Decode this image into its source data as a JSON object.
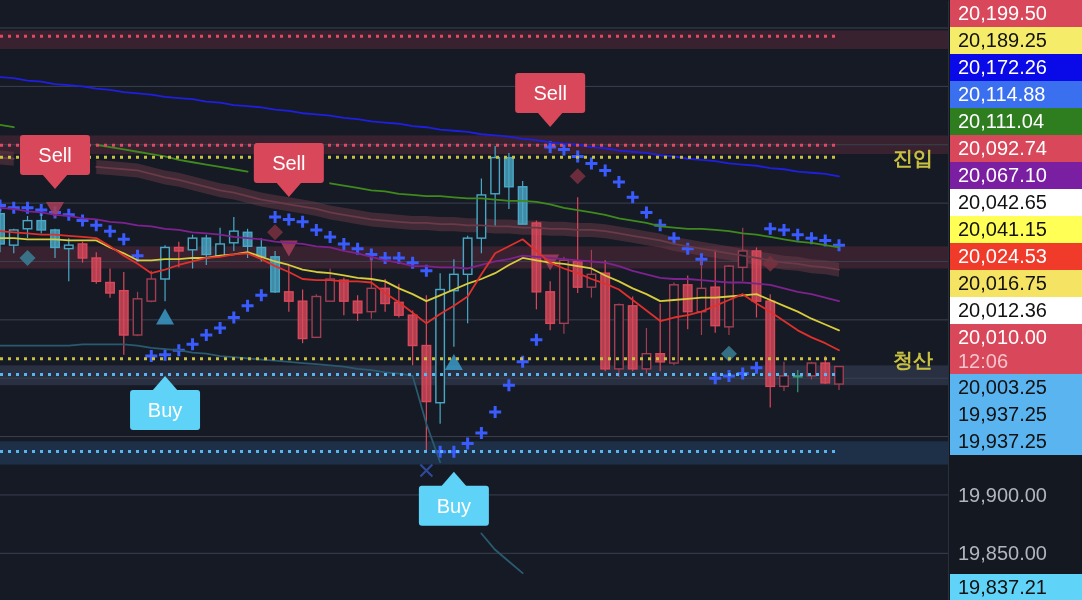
{
  "chart_data": {
    "type": "candlestick",
    "categories": [
      null,
      null,
      null,
      null,
      null,
      null,
      null,
      null,
      null,
      null,
      null,
      null,
      null,
      null,
      null,
      null,
      null,
      null,
      null,
      null,
      null,
      null,
      null,
      null,
      null,
      null,
      null,
      null,
      null,
      null,
      null,
      null,
      null,
      null,
      null,
      null,
      null,
      null,
      null,
      null,
      null,
      null,
      null,
      null,
      null,
      null,
      null,
      null,
      null,
      null,
      null,
      null,
      null,
      null,
      null,
      null,
      null,
      null,
      null,
      null,
      null,
      null
    ],
    "ohlc": [
      [
        20141,
        20146,
        20108,
        20115
      ],
      [
        20114,
        20128,
        20107,
        20127
      ],
      [
        20128,
        20139,
        20120,
        20135
      ],
      [
        20135,
        20141,
        20124,
        20127
      ],
      [
        20127,
        20128,
        20103,
        20112
      ],
      [
        20111,
        20120,
        20083,
        20114
      ],
      [
        20115,
        20117,
        20099,
        20103
      ],
      [
        20103,
        20108,
        20081,
        20083
      ],
      [
        20082,
        20094,
        20069,
        20073
      ],
      [
        20075,
        20091,
        20020,
        20037
      ],
      [
        20037,
        20074,
        20036,
        20068
      ],
      [
        20066,
        20092,
        20065,
        20085
      ],
      [
        20085,
        20114,
        20066,
        20112
      ],
      [
        20112,
        20117,
        20095,
        20109
      ],
      [
        20110,
        20123,
        20094,
        20120
      ],
      [
        20120,
        20123,
        20097,
        20106
      ],
      [
        20105,
        20129,
        20105,
        20115
      ],
      [
        20116,
        20138,
        20109,
        20126
      ],
      [
        20125,
        20128,
        20103,
        20113
      ],
      [
        20112,
        20120,
        20100,
        20104
      ],
      [
        20104,
        20109,
        20073,
        20074
      ],
      [
        20074,
        20097,
        20057,
        20066
      ],
      [
        20066,
        20076,
        20030,
        20034
      ],
      [
        20035,
        20072,
        20035,
        20070
      ],
      [
        20066,
        20094,
        20066,
        20085
      ],
      [
        20084,
        20086,
        20054,
        20066
      ],
      [
        20066,
        20071,
        20049,
        20056
      ],
      [
        20057,
        20104,
        20051,
        20077
      ],
      [
        20077,
        20085,
        20057,
        20064
      ],
      [
        20065,
        20081,
        20052,
        20054
      ],
      [
        20054,
        20058,
        20011,
        20028
      ],
      [
        20028,
        20071,
        19937,
        19980
      ],
      [
        19979,
        20090,
        19961,
        20076
      ],
      [
        20075,
        20102,
        20027,
        20089
      ],
      [
        20089,
        20122,
        20047,
        20120
      ],
      [
        20120,
        20171,
        20107,
        20157
      ],
      [
        20158,
        20199,
        20130,
        20189
      ],
      [
        20189,
        20193,
        20145,
        20164
      ],
      [
        20164,
        20169,
        20132,
        20132
      ],
      [
        20133,
        20135,
        20059,
        20074
      ],
      [
        20074,
        20083,
        20041,
        20047
      ],
      [
        20047,
        20104,
        20038,
        20101
      ],
      [
        20100,
        20155,
        20073,
        20078
      ],
      [
        20078,
        20110,
        20069,
        20089
      ],
      [
        20090,
        20101,
        20006,
        20008
      ],
      [
        20008,
        20064,
        20001,
        20063
      ],
      [
        20062,
        20070,
        20006,
        20008
      ],
      [
        20008,
        20043,
        20004,
        20021
      ],
      [
        20021,
        20064,
        20006,
        20014
      ],
      [
        20013,
        20082,
        20011,
        20080
      ],
      [
        20080,
        20088,
        20042,
        20057
      ],
      [
        20057,
        20102,
        20037,
        20077
      ],
      [
        20078,
        20110,
        20039,
        20045
      ],
      [
        20044,
        20097,
        20037,
        20096
      ],
      [
        20095,
        20129,
        20083,
        20109
      ],
      [
        20109,
        20112,
        20052,
        20066
      ],
      [
        20066,
        20072,
        19975,
        19993
      ],
      [
        19993,
        20014,
        19989,
        20002
      ],
      [
        20002,
        20007,
        19988,
        20002
      ],
      [
        20002,
        20014,
        19999,
        20013
      ],
      [
        20013,
        20019,
        19995,
        19996
      ],
      [
        19995,
        20010,
        19990,
        20010
      ]
    ],
    "colors": [
      "#4aa8c6",
      "#4aa8c6",
      "#4aa8c6",
      "#4aa8c6",
      "#4aa8c6",
      "#4aa8c6",
      "#d9485a",
      "#d9485a",
      "#d9485a",
      "#d9485a",
      "#a23e52",
      "#a23e52",
      "#4aa8c6",
      "#d9485a",
      "#4aa8c6",
      "#4aa8c6",
      "#4aa8c6",
      "#4aa8c6",
      "#4aa8c6",
      "#4aa8c6",
      "#4aa8c6",
      "#d9485a",
      "#d9485a",
      "#a23e52",
      "#a23e52",
      "#d9485a",
      "#d9485a",
      "#a23e52",
      "#d9485a",
      "#d9485a",
      "#d9485a",
      "#d9485a",
      "#4aa8c6",
      "#4aa8c6",
      "#4aa8c6",
      "#4aa8c6",
      "#4aa8c6",
      "#4aa8c6",
      "#4aa8c6",
      "#d9485a",
      "#d9485a",
      "#a23e52",
      "#d9485a",
      "#a23e52",
      "#d9485a",
      "#a23e52",
      "#d9485a",
      "#a23e52",
      "#d9485a",
      "#a23e52",
      "#d9485a",
      "#a23e52",
      "#d9485a",
      "#a23e52",
      "#a23e52",
      "#d9485a",
      "#d9485a",
      "#a23e52",
      "#3b9a7a",
      "#a23e52",
      "#d9485a",
      "#a23e52"
    ],
    "series": [
      {
        "type": "line",
        "color": "#1f1fe0",
        "values": [
          20258,
          20257,
          20255,
          20254,
          20252,
          20251,
          20250,
          20248,
          20247,
          20245,
          20244,
          20243,
          20241,
          20240,
          20239,
          20237,
          20236,
          20234,
          20233,
          20232,
          20230,
          20229,
          20227,
          20226,
          20225,
          20223,
          20222,
          20220,
          20219,
          20218,
          20216,
          20215,
          20213,
          20212,
          20211,
          20209,
          20208,
          20207,
          20205,
          20204,
          20202,
          20201,
          20200,
          20198,
          20197,
          20195,
          20194,
          20193,
          20191,
          20190,
          20188,
          20187,
          20186,
          20184,
          20183,
          20182,
          20180,
          20179,
          20177,
          20176,
          20175,
          20173
        ]
      },
      {
        "type": "line",
        "color": "#3f8a1c",
        "values": [
          20217,
          20215,
          null,
          null,
          null,
          null,
          null,
          20200,
          20198,
          20196,
          20194,
          20192,
          20190,
          20187,
          20185,
          20183,
          20181,
          20179,
          20177,
          null,
          null,
          null,
          null,
          null,
          20167,
          20165,
          20163,
          20161,
          20160,
          20158,
          20157,
          20156,
          20156,
          20155,
          20154,
          20154,
          20153,
          20152,
          20152,
          20151,
          20149,
          20146,
          20144,
          20142,
          20140,
          20137,
          20135,
          20133,
          20130,
          20129,
          20128,
          20128,
          20127,
          20126,
          20124,
          20123,
          20121,
          20119,
          20117,
          20116,
          20114,
          20112
        ]
      },
      {
        "type": "line",
        "color": "#6a3a48",
        "values": [
          20189,
          20188,
          null,
          null,
          null,
          null,
          null,
          20181,
          20180,
          20179,
          20178,
          20175,
          20172,
          20170,
          20167,
          20164,
          20161,
          20159,
          20156,
          20153,
          20151,
          20149,
          20147,
          20145,
          20142,
          20140,
          20138,
          20136,
          20135,
          20134,
          20133,
          20133,
          20132,
          20132,
          20131,
          20131,
          20130,
          20130,
          20129,
          20129,
          20128,
          20128,
          20127,
          20127,
          20126,
          20124,
          20122,
          20120,
          20118,
          20115,
          20113,
          20111,
          20109,
          20107,
          20105,
          20103,
          20101,
          20099,
          20098,
          20096,
          20095,
          20093
        ],
        "lower": [
          20183,
          20182,
          null,
          null,
          null,
          null,
          null,
          20175,
          20174,
          20173,
          20172,
          20169,
          20166,
          20164,
          20161,
          20158,
          20155,
          20153,
          20150,
          20147,
          20145,
          20143,
          20141,
          20139,
          20136,
          20134,
          20132,
          20130,
          20129,
          20128,
          20127,
          20127,
          20126,
          20126,
          20125,
          20125,
          20124,
          20124,
          20123,
          20123,
          20122,
          20122,
          20121,
          20121,
          20120,
          20118,
          20116,
          20114,
          20112,
          20109,
          20107,
          20105,
          20103,
          20101,
          20099,
          20097,
          20095,
          20093,
          20092,
          20090,
          20089,
          20087
        ],
        "upper": [
          20195,
          20194,
          null,
          null,
          null,
          null,
          null,
          20187,
          20186,
          20185,
          20184,
          20181,
          20178,
          20176,
          20173,
          20170,
          20167,
          20165,
          20162,
          20159,
          20157,
          20155,
          20153,
          20151,
          20148,
          20146,
          20144,
          20142,
          20141,
          20140,
          20139,
          20139,
          20138,
          20138,
          20137,
          20137,
          20136,
          20136,
          20135,
          20135,
          20134,
          20134,
          20133,
          20133,
          20132,
          20130,
          20128,
          20126,
          20124,
          20121,
          20119,
          20117,
          20115,
          20113,
          20111,
          20109,
          20107,
          20105,
          20104,
          20102,
          20101,
          20099
        ]
      },
      {
        "type": "line",
        "color": "#7e2290",
        "values": [
          20146,
          20145,
          20143,
          20142,
          20140,
          20139,
          20137,
          20136,
          20134,
          20133,
          20131,
          20130,
          20128,
          20127,
          20125,
          20124,
          20123,
          20121,
          20120,
          20119,
          20117,
          20116,
          20115,
          20113,
          20112,
          20109,
          20107,
          20104,
          20101,
          20099,
          20096,
          20096,
          20095,
          20095,
          20094,
          20097,
          20100,
          20102,
          20105,
          20104,
          20103,
          20102,
          20101,
          20100,
          20099,
          20096,
          20092,
          20089,
          20086,
          20085,
          20085,
          20084,
          20083,
          20082,
          20082,
          20081,
          20080,
          20077,
          20074,
          20072,
          20069,
          20066
        ]
      },
      {
        "type": "line",
        "color": "#d6cc3c",
        "values": [
          20120,
          20120,
          20119,
          20119,
          20119,
          20118,
          20118,
          20118,
          20112,
          20107,
          20101,
          20101,
          20102,
          20102,
          20103,
          20103,
          20105,
          20106,
          20108,
          20104,
          20100,
          20097,
          20093,
          20091,
          20090,
          20088,
          20086,
          20085,
          20083,
          20077,
          20072,
          20066,
          20071,
          20076,
          20081,
          20085,
          20090,
          20097,
          20103,
          20101,
          20099,
          20098,
          20096,
          20094,
          20088,
          20083,
          20077,
          20072,
          20066,
          20067,
          20068,
          20069,
          20069,
          20070,
          20071,
          20072,
          20067,
          20062,
          20057,
          20051,
          20046,
          20041
        ]
      },
      {
        "type": "line",
        "color": "#e0302c",
        "values": [
          20126,
          20125,
          20124,
          20123,
          20123,
          20122,
          20121,
          20120,
          20113,
          20105,
          20098,
          20090,
          20093,
          20097,
          20100,
          20103,
          20104,
          20106,
          20107,
          20102,
          20096,
          20091,
          20085,
          20084,
          20084,
          20083,
          20083,
          20082,
          20073,
          20065,
          20056,
          20047,
          20055,
          20062,
          20070,
          20089,
          20107,
          20113,
          20119,
          20109,
          20099,
          20094,
          20090,
          20085,
          20081,
          20076,
          20067,
          20058,
          20049,
          20052,
          20054,
          20057,
          20062,
          20067,
          20072,
          20064,
          20057,
          20049,
          20041,
          20035,
          20030,
          20024
        ]
      },
      {
        "type": "line",
        "color": "#2a5a70",
        "values": [
          20028,
          20028,
          20028,
          20028,
          20028,
          20028,
          20029,
          20029,
          20029,
          20029,
          20028,
          20026,
          20025,
          20024,
          20022,
          20021,
          20019,
          20018,
          20017,
          20016,
          20015,
          20014,
          20013,
          20012,
          20011,
          20010,
          20008,
          20007,
          20005,
          20004,
          20002,
          19961,
          19928,
          null,
          null,
          19867,
          19853,
          19843,
          19833,
          null,
          null,
          null,
          null,
          null,
          null,
          null,
          null,
          null,
          null,
          null,
          null,
          null,
          null,
          null,
          null,
          null,
          null,
          null,
          null,
          null,
          null,
          null
        ]
      },
      {
        "type": "scatter",
        "marker": "cross",
        "color": "#3a5cff",
        "values": [
          20148,
          20146,
          20146,
          20144,
          20142,
          20140,
          20135,
          20131,
          20126,
          20119,
          20105,
          20019,
          20020,
          20024,
          20029,
          20037,
          20043,
          20052,
          20062,
          20071,
          20138,
          20136,
          20134,
          20127,
          20121,
          20115,
          20111,
          20106,
          20103,
          20103,
          20099,
          20092,
          19937,
          19937,
          19944,
          19953,
          19971,
          19994,
          20014,
          20033,
          20198,
          20196,
          20190,
          20184,
          20178,
          20168,
          20155,
          20142,
          20131,
          20120,
          20111,
          20102,
          20000,
          20002,
          20004,
          20009,
          20128,
          20127,
          20123,
          20120,
          20118,
          20114
        ]
      },
      {
        "type": "scatter",
        "marker": "diamond",
        "color": "#7a3040",
        "values": [
          null,
          null,
          null,
          null,
          null,
          null,
          null,
          null,
          null,
          null,
          null,
          null,
          null,
          null,
          null,
          null,
          null,
          null,
          null,
          null,
          20125,
          null,
          null,
          null,
          null,
          null,
          null,
          null,
          null,
          null,
          null,
          null,
          null,
          null,
          null,
          null,
          null,
          null,
          null,
          null,
          null,
          null,
          20173,
          null,
          null,
          null,
          null,
          null,
          null,
          null,
          null,
          null,
          null,
          null,
          null,
          null,
          20098,
          null,
          null,
          null,
          null,
          null
        ]
      },
      {
        "type": "scatter",
        "marker": "diamond",
        "color": "#3a7f95",
        "values": [
          null,
          null,
          20103,
          null,
          null,
          null,
          null,
          null,
          null,
          null,
          null,
          null,
          null,
          null,
          null,
          null,
          null,
          null,
          null,
          null,
          null,
          null,
          null,
          null,
          null,
          null,
          null,
          null,
          null,
          null,
          null,
          null,
          null,
          null,
          null,
          null,
          null,
          null,
          null,
          null,
          null,
          null,
          null,
          null,
          null,
          null,
          null,
          null,
          null,
          null,
          null,
          null,
          null,
          20021,
          null,
          null,
          null,
          null,
          null,
          null,
          null,
          null
        ]
      },
      {
        "type": "scatter",
        "marker": "triangle-down",
        "color": "#a8405a",
        "values": [
          null,
          null,
          null,
          null,
          20145,
          null,
          null,
          null,
          null,
          null,
          null,
          null,
          null,
          null,
          null,
          null,
          null,
          null,
          null,
          null,
          null,
          20112,
          null,
          null,
          null,
          null,
          null,
          null,
          null,
          null,
          null,
          null,
          null,
          null,
          null,
          null,
          null,
          null,
          null,
          null,
          20100,
          null,
          null,
          null,
          null,
          null,
          null,
          null,
          null,
          null,
          null,
          null,
          null,
          null,
          null,
          null,
          null,
          null,
          null,
          null,
          null,
          null
        ]
      },
      {
        "type": "scatter",
        "marker": "triangle",
        "color": "#3a9ac8",
        "values": [
          null,
          null,
          null,
          null,
          null,
          null,
          null,
          null,
          null,
          null,
          null,
          null,
          20052,
          null,
          null,
          null,
          null,
          null,
          null,
          null,
          null,
          null,
          null,
          null,
          null,
          null,
          null,
          null,
          null,
          null,
          null,
          null,
          null,
          20013,
          null,
          null,
          null,
          null,
          null,
          null,
          null,
          null,
          null,
          null,
          null,
          null,
          null,
          null,
          null,
          null,
          null,
          null,
          null,
          null,
          null,
          null,
          null,
          null,
          null,
          null,
          null,
          null
        ]
      },
      {
        "type": "scatter",
        "marker": "x",
        "color": "#2f4a9a",
        "values": [
          null,
          null,
          null,
          null,
          null,
          null,
          null,
          null,
          null,
          null,
          null,
          null,
          null,
          null,
          null,
          null,
          null,
          null,
          null,
          null,
          null,
          null,
          null,
          null,
          null,
          null,
          null,
          null,
          null,
          null,
          null,
          19921,
          null,
          null,
          null,
          null,
          null,
          null,
          null,
          null,
          null,
          null,
          null,
          null,
          null,
          null,
          null,
          null,
          null,
          null,
          null,
          null,
          null,
          null,
          null,
          null,
          null,
          null,
          null,
          null,
          null,
          null
        ]
      }
    ],
    "ylim": [
      19810,
      20324
    ],
    "yticks": [
      {
        "value": 19850,
        "label": "19,850.00"
      },
      {
        "value": 19900,
        "label": "19,900.00"
      },
      {
        "value": 19950,
        "label": null
      },
      {
        "value": 20000,
        "label": null
      },
      {
        "value": 20050,
        "label": null
      },
      {
        "value": 20100,
        "label": null
      },
      {
        "value": 20150,
        "label": null
      },
      {
        "value": 20200,
        "label": null
      },
      {
        "value": 20250,
        "label": null
      },
      {
        "value": 20300,
        "label": null
      }
    ],
    "tick_labels": "y",
    "grid": "y",
    "ref_lines": [
      {
        "axis": "y",
        "value": 20293,
        "color": "#e04a64",
        "line_style": "dotted"
      },
      {
        "axis": "y",
        "value": 20199.5,
        "color": "#e04a64",
        "line_style": "dotted"
      },
      {
        "axis": "y",
        "value": 20189.25,
        "color": "#c8c040",
        "line_style": "dotted",
        "label": "진입"
      },
      {
        "axis": "y",
        "value": 20016.75,
        "color": "#c8c040",
        "line_style": "dotted",
        "label": "청산"
      },
      {
        "axis": "y",
        "value": 20003.25,
        "color": "#5ab4f0",
        "line_style": "dotted"
      },
      {
        "axis": "y",
        "value": 19937.25,
        "color": "#5ab4f0",
        "line_style": "dotted"
      }
    ],
    "bands": [
      {
        "axis": "y",
        "from": 20282,
        "to": 20298,
        "color": "#5a2a3a"
      },
      {
        "axis": "y",
        "from": 20192,
        "to": 20208,
        "color": "#5a2a3a"
      },
      {
        "axis": "y",
        "from": 20094,
        "to": 20113,
        "color": "#5a2a3a"
      },
      {
        "axis": "y",
        "from": 19994,
        "to": 20011,
        "color": "#3a4560"
      },
      {
        "axis": "y",
        "from": 19926,
        "to": 19946,
        "color": "#24456a"
      }
    ],
    "annotations": [
      "Sell",
      "Sell",
      "Sell",
      "Buy",
      "Buy",
      "20,199.50",
      "20,189.25",
      "20,172.26",
      "20,114.88",
      "20,111.04",
      "20,092.74",
      "20,067.10",
      "20,042.65",
      "20,041.15",
      "20,024.53",
      "20,016.75",
      "20,012.36",
      "20,010.00\n12:06",
      "20,003.25",
      "19,937.25",
      "19,937.25",
      "19,837.21"
    ]
  }
}
